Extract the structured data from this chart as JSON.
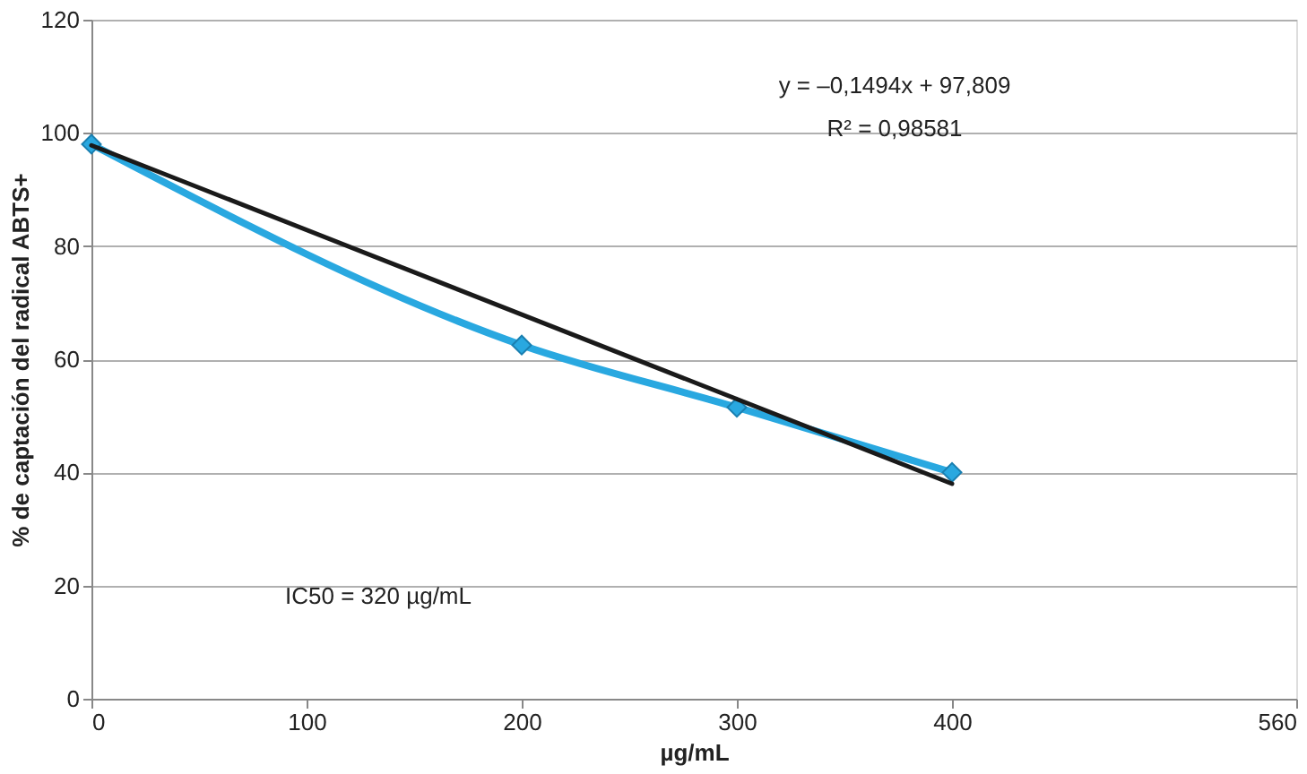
{
  "chart_data": {
    "type": "line",
    "xlabel": "µg/mL",
    "ylabel": "% de captación del radical ABTS+",
    "x": [
      0,
      200,
      300,
      400
    ],
    "series": [
      {
        "color": "#29a8e0",
        "values": [
          98,
          62.5,
          51.5,
          40
        ],
        "marker": "diamond"
      },
      {
        "type": "line",
        "x": [
          0,
          400
        ],
        "color": "#1a1a1a",
        "values": [
          97.8,
          38.0
        ],
        "marker": "none"
      }
    ],
    "xlim": [
      0,
      560
    ],
    "xticks": [
      0,
      100,
      200,
      300,
      400,
      560
    ],
    "ylim": [
      0,
      120
    ],
    "yticks": [
      0,
      20,
      40,
      60,
      80,
      100,
      120
    ],
    "grid": "y",
    "annotations": [
      "y = –0,1494x + 97,809",
      "R² = 0,98581",
      "IC50 = 320 µg/mL"
    ]
  }
}
